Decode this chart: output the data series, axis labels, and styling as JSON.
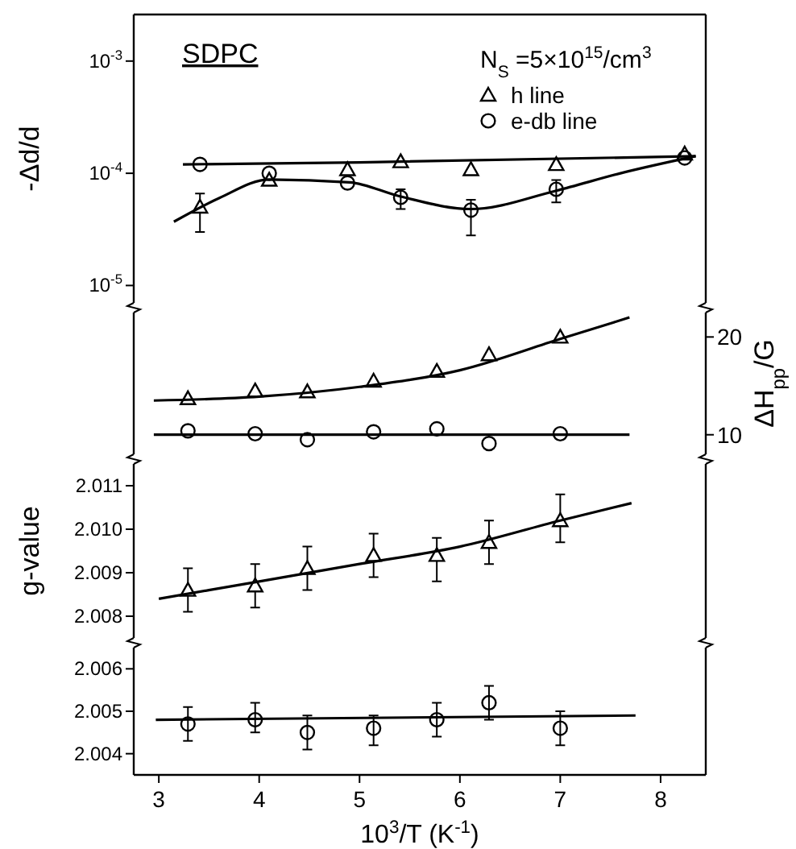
{
  "chart_data": [
    {
      "type": "scatter",
      "ylabel": "-Δd/d",
      "annotations": [
        "SDPC",
        "N$_{S}$ =5×10$^{15}$/cm$^{3}$"
      ],
      "log": "y",
      "xlim": [
        2.75,
        8.45
      ],
      "ylim": [
        7e-06,
        0.0026
      ],
      "yticks": [
        {
          "value": 0.001,
          "label": "10$^{-3}$"
        },
        {
          "value": 0.0001,
          "label": "10$^{-4}$"
        },
        {
          "value": 1e-05,
          "label": "10$^{-5}$"
        }
      ],
      "tick_labels": "y",
      "legend": "top right",
      "series": [
        {
          "name": "h line",
          "color": "#000000",
          "marker": "triangle",
          "x": [
            3.41,
            4.1,
            4.88,
            5.41,
            6.11,
            6.96,
            8.24
          ],
          "values": [
            5e-05,
            8.7e-05,
            0.000108,
            0.000127,
            0.000108,
            0.00012,
            0.000149
          ],
          "errors": [
            [
              3e-05,
              6.6e-05
            ],
            null,
            null,
            null,
            null,
            null,
            null
          ]
        },
        {
          "name": "e-db line",
          "color": "#000000",
          "marker": "circle",
          "x": [
            3.41,
            4.1,
            4.88,
            5.41,
            6.11,
            6.96,
            8.24
          ],
          "values": [
            0.00012,
            0.0001,
            8.2e-05,
            6.1e-05,
            4.7e-05,
            7.2e-05,
            0.000137
          ],
          "errors": [
            null,
            null,
            null,
            [
              4.8e-05,
              7.2e-05
            ],
            [
              2.8e-05,
              5.8e-05
            ],
            [
              5.5e-05,
              8.7e-05
            ],
            null
          ]
        },
        {
          "type": "line",
          "color": "#000000",
          "x": [
            3.24,
            5.0,
            8.35
          ],
          "values": [
            0.00012,
            0.000125,
            0.000142
          ]
        },
        {
          "type": "line",
          "color": "#000000",
          "x": [
            3.15,
            3.6,
            4.1,
            4.9,
            5.41,
            6.11,
            6.96,
            7.6,
            8.35
          ],
          "values": [
            3.7e-05,
            6e-05,
            8.8e-05,
            8.3e-05,
            6.2e-05,
            4.8e-05,
            7e-05,
            0.0001,
            0.000142
          ]
        }
      ]
    },
    {
      "type": "scatter",
      "y2label": "ΔH$_{pp}$/G",
      "xlim": [
        2.75,
        8.45
      ],
      "y2lim": [
        8,
        22.5
      ],
      "y2ticks": [
        10,
        20
      ],
      "tick_labels": "y",
      "series": [
        {
          "color": "#000000",
          "marker": "triangle",
          "axis": "y2",
          "x": [
            3.29,
            3.96,
            4.48,
            5.14,
            5.77,
            6.29,
            7.0
          ],
          "values": [
            13.7,
            14.5,
            14.4,
            15.5,
            16.5,
            18.2,
            20.0
          ]
        },
        {
          "color": "#000000",
          "marker": "circle",
          "axis": "y2",
          "x": [
            3.29,
            3.96,
            4.48,
            5.14,
            5.77,
            6.29,
            7.0
          ],
          "values": [
            10.4,
            10.1,
            9.5,
            10.3,
            10.6,
            9.1,
            10.1
          ]
        },
        {
          "type": "line",
          "color": "#000000",
          "axis": "y2",
          "x": [
            2.95,
            4.0,
            5.0,
            6.0,
            7.0,
            7.69
          ],
          "values": [
            13.5,
            13.9,
            14.9,
            16.6,
            19.8,
            22.0
          ]
        },
        {
          "type": "line",
          "color": "#000000",
          "axis": "y2",
          "x": [
            2.95,
            7.69
          ],
          "values": [
            10.0,
            10.0
          ]
        }
      ]
    },
    {
      "type": "scatter",
      "ylabel": "g-value",
      "xlim": [
        2.75,
        8.45
      ],
      "ylim": [
        2.0075,
        2.0115
      ],
      "yticks": [
        {
          "value": 2.008,
          "label": "2.008"
        },
        {
          "value": 2.009,
          "label": "2.009"
        },
        {
          "value": 2.01,
          "label": "2.010"
        },
        {
          "value": 2.011,
          "label": "2.011"
        }
      ],
      "tick_labels": "y",
      "series": [
        {
          "color": "#000000",
          "marker": "triangle",
          "x": [
            3.29,
            3.96,
            4.48,
            5.14,
            5.77,
            6.29,
            7.0
          ],
          "values": [
            2.0086,
            2.0087,
            2.0091,
            2.0094,
            2.0094,
            2.0097,
            2.0102
          ],
          "errors": [
            [
              2.0081,
              2.0091
            ],
            [
              2.0082,
              2.0092
            ],
            [
              2.0086,
              2.0096
            ],
            [
              2.0089,
              2.0099
            ],
            [
              2.0088,
              2.0098
            ],
            [
              2.0092,
              2.0102
            ],
            [
              2.0097,
              2.0108
            ]
          ]
        },
        {
          "type": "line",
          "color": "#000000",
          "x": [
            3.0,
            4.0,
            5.0,
            6.0,
            7.0,
            7.71
          ],
          "values": [
            2.0084,
            2.0088,
            2.0092,
            2.0096,
            2.0102,
            2.0106
          ]
        }
      ]
    },
    {
      "type": "scatter",
      "xlabel": "10$^{3}$/T (K$^{-1}$)",
      "xlim": [
        2.75,
        8.45
      ],
      "xticks": [
        3,
        4,
        5,
        6,
        7,
        8
      ],
      "ylim": [
        2.0035,
        2.0065
      ],
      "yticks": [
        {
          "value": 2.004,
          "label": "2.004"
        },
        {
          "value": 2.005,
          "label": "2.005"
        },
        {
          "value": 2.006,
          "label": "2.006"
        }
      ],
      "series": [
        {
          "color": "#000000",
          "marker": "circle",
          "x": [
            3.29,
            3.96,
            4.48,
            5.14,
            5.77,
            6.29,
            7.0
          ],
          "values": [
            2.0047,
            2.0048,
            2.0045,
            2.0046,
            2.0048,
            2.0052,
            2.0046
          ],
          "errors": [
            [
              2.0043,
              2.0051
            ],
            [
              2.0045,
              2.0052
            ],
            [
              2.0041,
              2.0049
            ],
            [
              2.0042,
              2.0049
            ],
            [
              2.0044,
              2.0052
            ],
            [
              2.0048,
              2.0056
            ],
            [
              2.0042,
              2.005
            ]
          ]
        },
        {
          "type": "line",
          "color": "#000000",
          "x": [
            2.97,
            7.75
          ],
          "values": [
            2.0048,
            2.0049
          ]
        }
      ]
    }
  ]
}
